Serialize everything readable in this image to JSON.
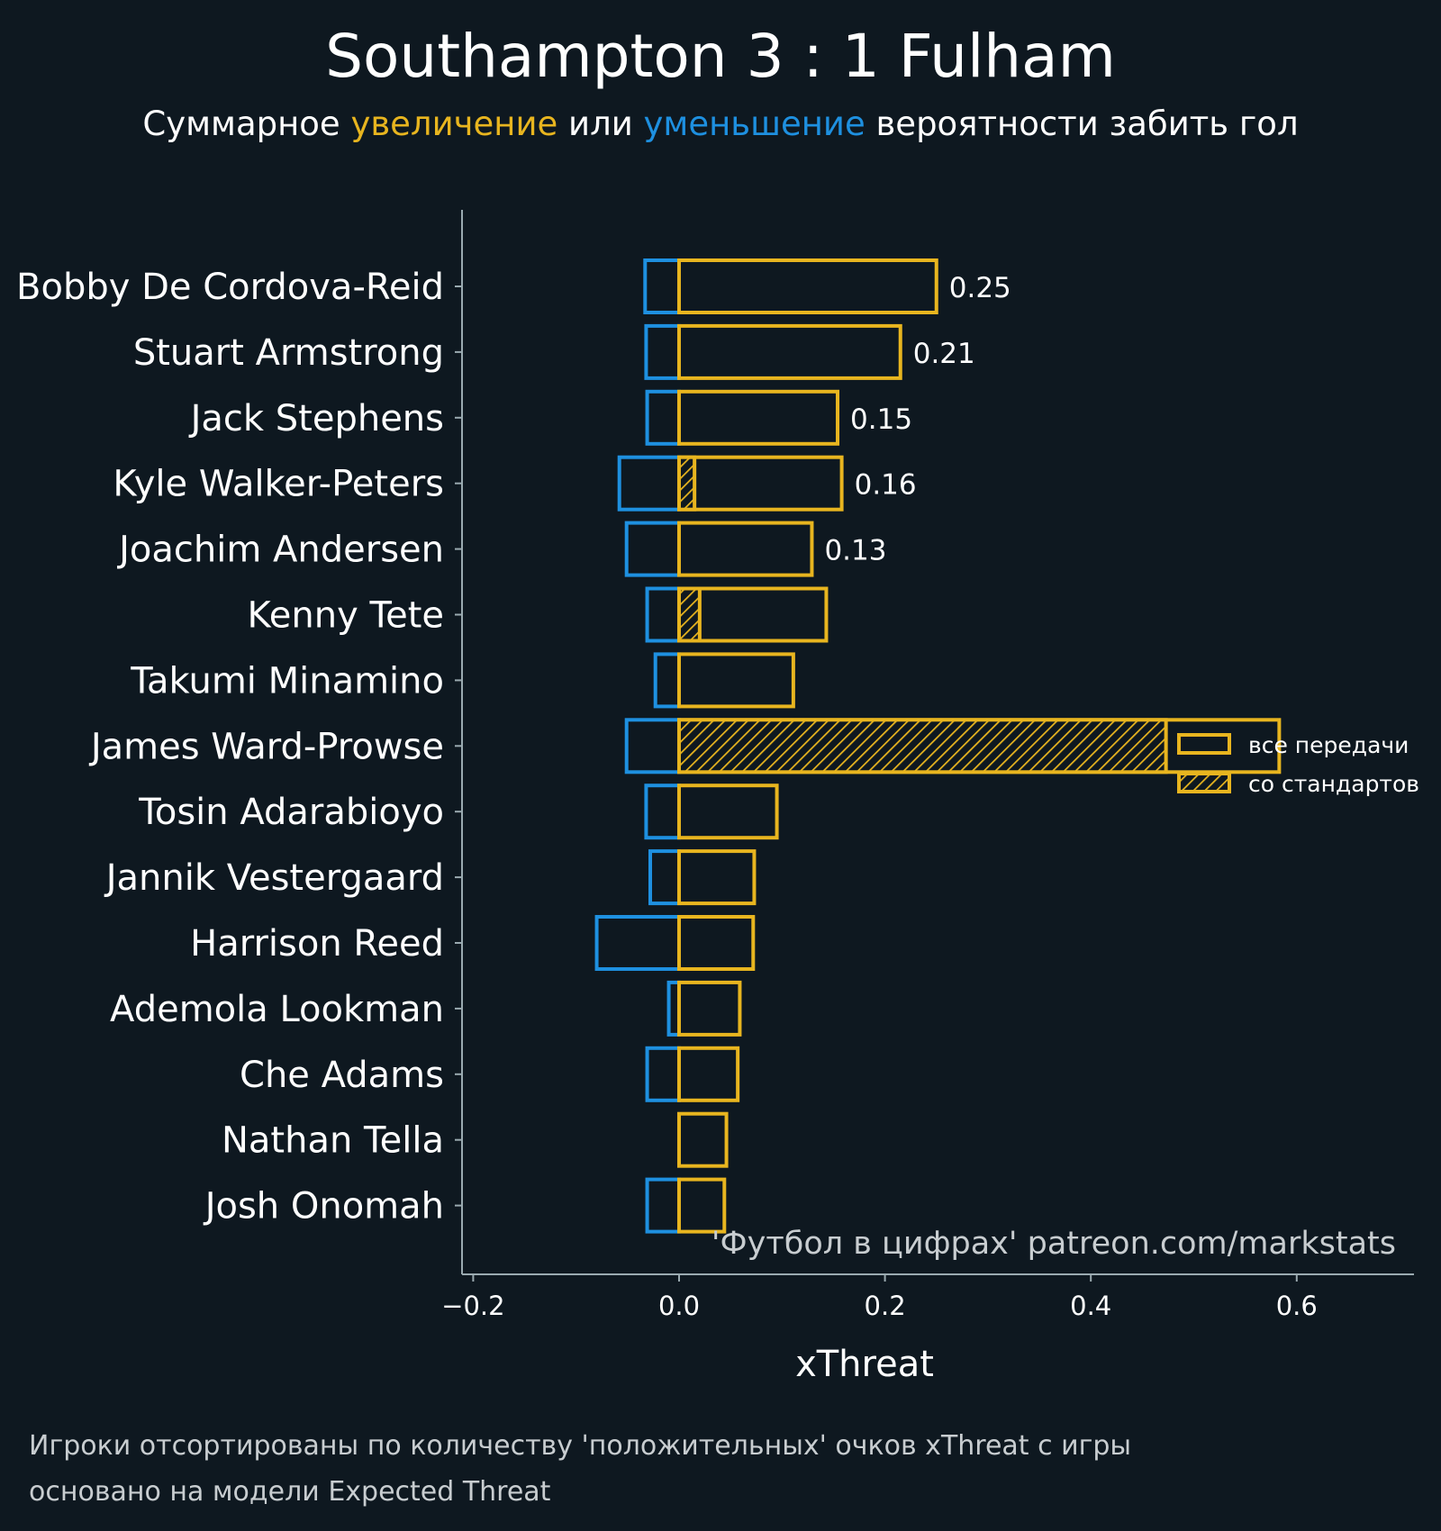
{
  "title": "Southampton 3 : 1 Fulham",
  "subtitle": {
    "part1": "Суммарное ",
    "increase_word": "увеличение",
    "part2": " или ",
    "decrease_word": "уменьшение",
    "part3": " вероятности забить гол"
  },
  "colors": {
    "background": "#0e1820",
    "positive": "#e8b51f",
    "negative": "#1e90e0",
    "axis": "#9aaab0",
    "text": "#ffffff",
    "muted": "#c8cdd0"
  },
  "watermark": "'Футбол в цифрах' patreon.com/markstats",
  "footnote": {
    "line1": "Игроки отсортированы по количеству 'положительных' очков xThreat с игры",
    "line2": "основано на модели Expected Threat"
  },
  "legend": {
    "all_passes": "все передачи",
    "set_pieces": "со стандартов"
  },
  "chart_data": {
    "type": "bar",
    "orientation": "horizontal",
    "xlabel": "xThreat",
    "xlim": [
      -0.22,
      0.71
    ],
    "xticks": [
      -0.2,
      0.0,
      0.2,
      0.4,
      0.6
    ],
    "xtick_labels": [
      "−0.2",
      "0.0",
      "0.2",
      "0.4",
      "0.6"
    ],
    "categories": [
      "Bobby De Cordova-Reid",
      "Stuart Armstrong",
      "Jack Stephens",
      "Kyle Walker-Peters",
      "Joachim Andersen",
      "Kenny Tete",
      "Takumi Minamino",
      "James Ward-Prowse",
      "Tosin Adarabioyo",
      "Jannik Vestergaard",
      "Harrison Reed",
      "Ademola Lookman",
      "Che Adams",
      "Nathan Tella",
      "Josh Onomah"
    ],
    "series": [
      {
        "name": "positive",
        "values": [
          0.25,
          0.215,
          0.154,
          0.158,
          0.129,
          0.143,
          0.111,
          0.583,
          0.095,
          0.073,
          0.072,
          0.059,
          0.057,
          0.046,
          0.044
        ]
      },
      {
        "name": "negative",
        "values": [
          -0.033,
          -0.032,
          -0.031,
          -0.058,
          -0.051,
          -0.031,
          -0.023,
          -0.051,
          -0.032,
          -0.028,
          -0.08,
          -0.01,
          -0.031,
          0.0,
          -0.031
        ]
      },
      {
        "name": "set_pieces",
        "values": [
          0,
          0,
          0,
          0.015,
          0,
          0.02,
          0,
          0.473,
          0,
          0,
          0,
          0,
          0,
          0,
          0
        ]
      }
    ],
    "data_labels": [
      "0.25",
      "0.21",
      "0.15",
      "0.16",
      "0.13",
      null,
      null,
      null,
      null,
      null,
      null,
      null,
      null,
      null,
      null
    ],
    "legend_position": "right"
  }
}
